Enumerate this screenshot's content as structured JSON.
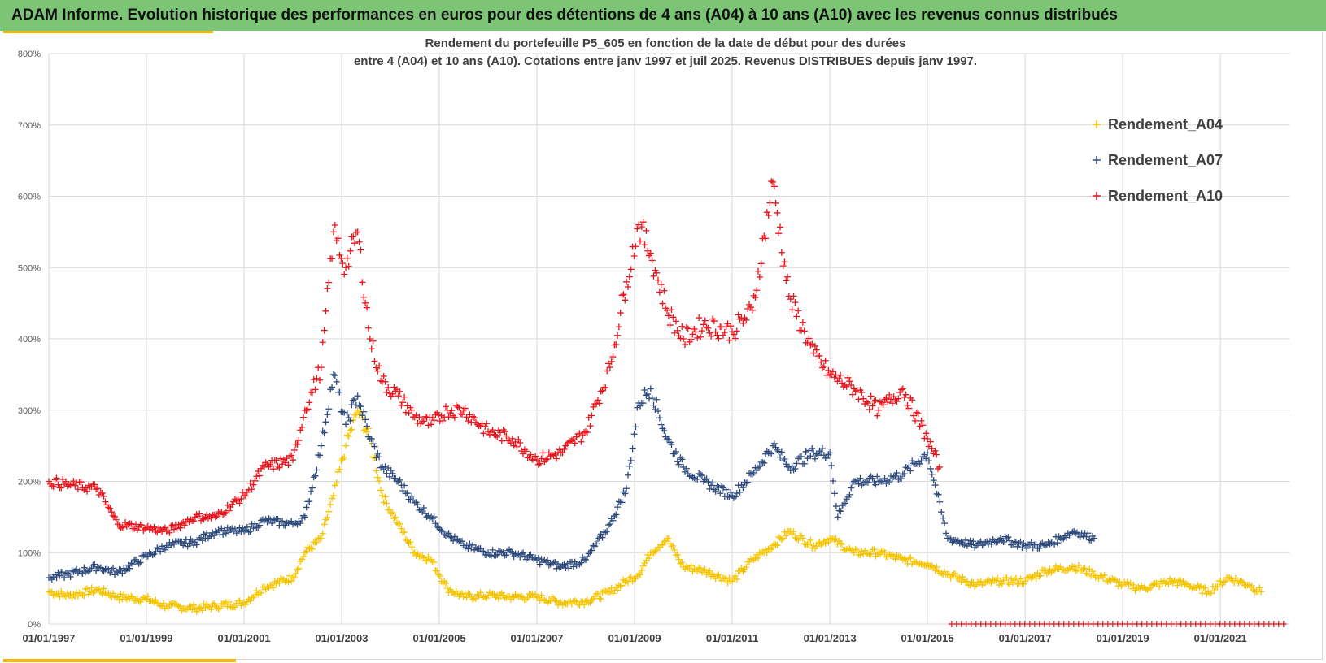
{
  "banner": {
    "title": "ADAM Informe. Evolution historique des performances en euros pour des détentions de 4 ans (A04) à 10 ans (A10) avec les revenus connus distribués"
  },
  "colors": {
    "banner": "#7cc576",
    "accent": "#f5b800",
    "A04": "#f5c400",
    "A07": "#2f4b7c",
    "A10": "#e8141c"
  },
  "chart_data": {
    "type": "scatter",
    "title_lines": [
      "Rendement du portefeuille P5_605 en fonction de la date de début pour des durées",
      "entre 4 (A04) et 10 ans (A10). Cotations entre janv 1997 et juil 2025. Revenus DISTRIBUES depuis janv 1997."
    ],
    "xlabel": "",
    "ylabel": "",
    "x_range": [
      "1997-01-01",
      "2022-06-01"
    ],
    "ylim": [
      0,
      800
    ],
    "y_ticks": [
      "0%",
      "100%",
      "200%",
      "300%",
      "400%",
      "500%",
      "600%",
      "700%",
      "800%"
    ],
    "x_ticks": [
      "01/01/1997",
      "01/01/1999",
      "01/01/2001",
      "01/01/2003",
      "01/01/2005",
      "01/01/2007",
      "01/01/2009",
      "01/01/2011",
      "01/01/2013",
      "01/01/2015",
      "01/01/2017",
      "01/01/2019",
      "01/01/2021"
    ],
    "grid": true,
    "legend_position": "top-right",
    "marker": "+",
    "series": [
      {
        "name": "Rendement_A04",
        "color": "#f5c400",
        "x": [
          "1997-01",
          "1997-06",
          "1998-01",
          "1998-06",
          "1999-01",
          "1999-06",
          "2000-01",
          "2000-06",
          "2001-01",
          "2001-06",
          "2002-01",
          "2002-04",
          "2002-08",
          "2002-11",
          "2003-02",
          "2003-05",
          "2003-08",
          "2003-11",
          "2004-03",
          "2004-07",
          "2004-11",
          "2005-03",
          "2005-07",
          "2006-01",
          "2006-07",
          "2007-01",
          "2007-07",
          "2008-01",
          "2008-07",
          "2008-11",
          "2009-02",
          "2009-05",
          "2009-09",
          "2010-01",
          "2010-06",
          "2011-01",
          "2011-06",
          "2011-11",
          "2012-03",
          "2012-09",
          "2013-01",
          "2013-07",
          "2014-01",
          "2014-07",
          "2015-01",
          "2015-06",
          "2016-01",
          "2016-07",
          "2017-01",
          "2017-06",
          "2018-01",
          "2018-06",
          "2019-01",
          "2019-06",
          "2020-01",
          "2020-05",
          "2020-10",
          "2021-03",
          "2021-08",
          "2021-11"
        ],
        "y": [
          45,
          40,
          48,
          38,
          35,
          25,
          22,
          25,
          30,
          52,
          65,
          100,
          120,
          180,
          250,
          300,
          260,
          180,
          140,
          100,
          90,
          50,
          38,
          40,
          38,
          38,
          30,
          32,
          45,
          60,
          70,
          100,
          120,
          80,
          75,
          60,
          90,
          110,
          130,
          110,
          120,
          100,
          100,
          90,
          85,
          70,
          55,
          60,
          60,
          75,
          80,
          70,
          55,
          50,
          60,
          55,
          45,
          65,
          55,
          45
        ]
      },
      {
        "name": "Rendement_A07",
        "color": "#2f4b7c",
        "x": [
          "1997-01",
          "1997-06",
          "1998-01",
          "1998-06",
          "1999-01",
          "1999-06",
          "2000-01",
          "2000-06",
          "2001-01",
          "2001-06",
          "2002-01",
          "2002-04",
          "2002-08",
          "2002-11",
          "2003-02",
          "2003-05",
          "2003-08",
          "2003-11",
          "2004-03",
          "2004-07",
          "2004-11",
          "2005-03",
          "2005-07",
          "2006-01",
          "2006-07",
          "2007-01",
          "2007-07",
          "2008-01",
          "2008-07",
          "2008-11",
          "2009-02",
          "2009-05",
          "2009-09",
          "2010-01",
          "2010-06",
          "2011-01",
          "2011-06",
          "2011-11",
          "2012-03",
          "2012-09",
          "2013-01",
          "2013-03",
          "2013-07",
          "2014-01",
          "2014-07",
          "2015-01",
          "2015-06",
          "2016-01",
          "2016-07",
          "2017-01",
          "2017-06",
          "2018-01",
          "2018-06"
        ],
        "y": [
          65,
          70,
          80,
          72,
          95,
          110,
          115,
          130,
          130,
          145,
          140,
          150,
          250,
          350,
          280,
          320,
          260,
          220,
          200,
          170,
          150,
          125,
          110,
          100,
          100,
          90,
          80,
          90,
          140,
          190,
          310,
          330,
          260,
          220,
          200,
          180,
          210,
          250,
          220,
          240,
          240,
          150,
          200,
          200,
          210,
          240,
          120,
          110,
          120,
          110,
          110,
          130,
          120
        ]
      },
      {
        "name": "Rendement_A10",
        "color": "#e8141c",
        "x": [
          "1997-01",
          "1997-06",
          "1998-01",
          "1998-06",
          "1999-01",
          "1999-06",
          "2000-01",
          "2000-06",
          "2001-01",
          "2001-06",
          "2002-01",
          "2002-04",
          "2002-08",
          "2002-11",
          "2003-02",
          "2003-05",
          "2003-08",
          "2003-11",
          "2004-03",
          "2004-07",
          "2004-11",
          "2005-03",
          "2005-07",
          "2006-01",
          "2006-07",
          "2007-01",
          "2007-07",
          "2008-01",
          "2008-07",
          "2008-11",
          "2009-02",
          "2009-05",
          "2009-09",
          "2010-01",
          "2010-06",
          "2011-01",
          "2011-06",
          "2011-11",
          "2012-03",
          "2012-09",
          "2013-01",
          "2013-07",
          "2014-01",
          "2014-07",
          "2015-01",
          "2015-04"
        ],
        "y": [
          200,
          195,
          190,
          140,
          135,
          130,
          150,
          150,
          180,
          220,
          230,
          300,
          360,
          550,
          500,
          550,
          400,
          340,
          320,
          290,
          280,
          300,
          300,
          270,
          260,
          230,
          240,
          270,
          360,
          480,
          560,
          520,
          440,
          400,
          420,
          410,
          440,
          620,
          460,
          380,
          350,
          330,
          300,
          330,
          260,
          220
        ]
      }
    ]
  }
}
